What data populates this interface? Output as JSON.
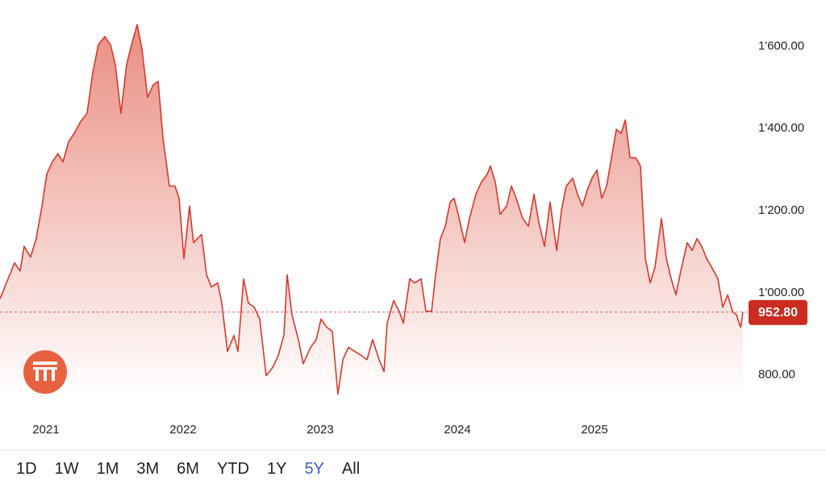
{
  "chart_data": {
    "type": "area",
    "x": [
      2020.665,
      2020.724,
      2020.771,
      2020.812,
      2020.841,
      2020.888,
      2020.929,
      2020.971,
      2021.006,
      2021.047,
      2021.088,
      2021.124,
      2021.165,
      2021.206,
      2021.253,
      2021.3,
      2021.341,
      2021.382,
      2021.429,
      2021.471,
      2021.506,
      2021.547,
      2021.588,
      2021.624,
      2021.665,
      2021.7,
      2021.741,
      2021.782,
      2021.818,
      2021.853,
      2021.9,
      2021.941,
      2021.971,
      2022.006,
      2022.047,
      2022.076,
      2022.135,
      2022.171,
      2022.206,
      2022.253,
      2022.282,
      2022.324,
      2022.371,
      2022.4,
      2022.441,
      2022.476,
      2022.518,
      2022.559,
      2022.606,
      2022.653,
      2022.694,
      2022.735,
      2022.759,
      2022.794,
      2022.841,
      2022.876,
      2022.929,
      2022.971,
      2023.006,
      2023.047,
      2023.088,
      2023.129,
      2023.165,
      2023.206,
      2023.253,
      2023.3,
      2023.341,
      2023.382,
      2023.429,
      2023.465,
      2023.488,
      2023.535,
      2023.576,
      2023.606,
      2023.653,
      2023.688,
      2023.735,
      2023.771,
      2023.812,
      2023.841,
      2023.876,
      2023.912,
      2023.947,
      2023.976,
      2024.006,
      2024.053,
      2024.088,
      2024.135,
      2024.176,
      2024.218,
      2024.241,
      2024.276,
      2024.312,
      2024.359,
      2024.394,
      2024.429,
      2024.476,
      2024.518,
      2024.559,
      2024.594,
      2024.635,
      2024.676,
      2024.724,
      2024.759,
      2024.794,
      2024.841,
      2024.876,
      2024.912,
      2024.947,
      2024.982,
      2025.018,
      2025.053,
      2025.088,
      2025.124,
      2025.159,
      2025.194,
      2025.224,
      2025.259,
      2025.3,
      2025.335,
      2025.371,
      2025.406,
      2025.441,
      2025.488,
      2025.524,
      2025.559,
      2025.594,
      2025.629,
      2025.676,
      2025.712,
      2025.747,
      2025.782,
      2025.818,
      2025.853,
      2025.9,
      2025.935,
      2025.971,
      2026.006,
      2026.035,
      2026.065,
      2026.082
    ],
    "values": [
      985,
      1034,
      1073,
      1053,
      1113,
      1087,
      1132,
      1211,
      1289,
      1319,
      1339,
      1319,
      1368,
      1388,
      1417,
      1437,
      1535,
      1604,
      1624,
      1604,
      1555,
      1437,
      1555,
      1604,
      1653,
      1594,
      1476,
      1506,
      1515,
      1378,
      1260,
      1260,
      1230,
      1083,
      1211,
      1122,
      1142,
      1044,
      1014,
      1024,
      975,
      857,
      896,
      857,
      1034,
      975,
      965,
      936,
      798,
      818,
      847,
      896,
      1044,
      946,
      886,
      827,
      867,
      886,
      936,
      916,
      906,
      753,
      837,
      867,
      857,
      847,
      837,
      886,
      837,
      808,
      926,
      981,
      955,
      926,
      1034,
      1024,
      1034,
      955,
      955,
      1044,
      1132,
      1162,
      1221,
      1230,
      1191,
      1122,
      1181,
      1240,
      1270,
      1289,
      1309,
      1270,
      1191,
      1211,
      1260,
      1230,
      1181,
      1162,
      1240,
      1171,
      1113,
      1221,
      1103,
      1201,
      1260,
      1279,
      1240,
      1211,
      1250,
      1279,
      1299,
      1230,
      1260,
      1329,
      1398,
      1388,
      1421,
      1329,
      1329,
      1309,
      1083,
      1024,
      1063,
      1181,
      1083,
      1034,
      995,
      1053,
      1122,
      1103,
      1132,
      1113,
      1083,
      1063,
      1034,
      965,
      995,
      955,
      946,
      916,
      952.8
    ],
    "color": "#d9382c",
    "fill_color": "#e8897c",
    "xlim": [
      2020.665,
      2026.082
    ],
    "xticks": [
      2021,
      2022,
      2023,
      2024,
      2025
    ],
    "ylim": [
      750,
      1713
    ],
    "yticks": [
      {
        "value": 800,
        "label": "800.00"
      },
      {
        "value": 1000,
        "label": "1'000.00"
      },
      {
        "value": 1200,
        "label": "1'200.00"
      },
      {
        "value": 1400,
        "label": "1'400.00"
      },
      {
        "value": 1600,
        "label": "1'600.00"
      }
    ],
    "reference_line": {
      "value": 952.8,
      "label": "952.80"
    }
  },
  "controls": {
    "ranges": [
      "1D",
      "1W",
      "1M",
      "3M",
      "6M",
      "YTD",
      "1Y",
      "5Y",
      "All"
    ],
    "selected": "5Y"
  }
}
